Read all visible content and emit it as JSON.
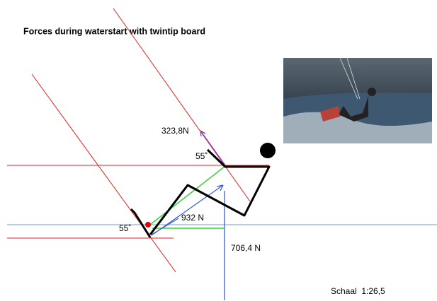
{
  "title": "Forces during waterstart with twintip board",
  "labels": {
    "force_top": "323,8N",
    "angle_top": "55˚",
    "angle_bottom": "55˚",
    "force_diag": "932 N",
    "force_vertical": "706,4 N",
    "scale": "Schaal  1:26,5"
  }
}
